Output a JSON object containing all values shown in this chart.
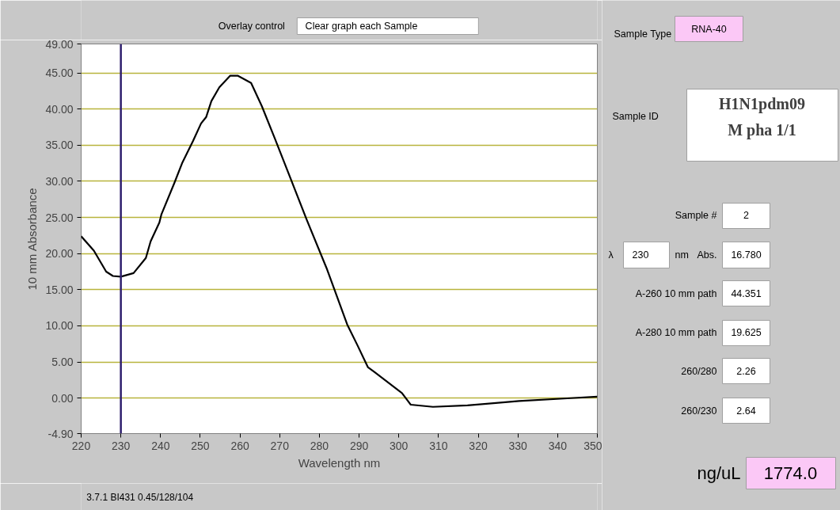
{
  "chart_data": {
    "type": "line",
    "xlabel": "Wavelength nm",
    "ylabel": "10 mm Absorbance",
    "xlim": [
      220,
      350
    ],
    "ylim": [
      -4.9,
      49
    ],
    "xticks": [
      220,
      230,
      240,
      250,
      260,
      270,
      280,
      290,
      300,
      310,
      320,
      330,
      340,
      350
    ],
    "yticks": [
      {
        "value": -4.9,
        "label": "-4.90"
      },
      {
        "value": 0,
        "label": "0.00"
      },
      {
        "value": 5,
        "label": "5.00"
      },
      {
        "value": 10,
        "label": "10.00"
      },
      {
        "value": 15,
        "label": "15.00"
      },
      {
        "value": 20,
        "label": "20.00"
      },
      {
        "value": 25,
        "label": "25.00"
      },
      {
        "value": 30,
        "label": "30.00"
      },
      {
        "value": 35,
        "label": "35.00"
      },
      {
        "value": 40,
        "label": "40.00"
      },
      {
        "value": 45,
        "label": "45.00"
      },
      {
        "value": 49,
        "label": "49.00"
      }
    ],
    "grid": "y",
    "series": [
      {
        "color": "#000000",
        "x": [
          220,
          223.2,
          226.3,
          228,
          230,
          233.2,
          236.3,
          237.5,
          239.7,
          240.2,
          243.5,
          245.5,
          248.2,
          250.2,
          251.5,
          252.8,
          254.8,
          257.5,
          259.5,
          262.8,
          265.5,
          268.8,
          272.8,
          276.8,
          281.8,
          287,
          289.6,
          292.2,
          293.9,
          300.8,
          303,
          308.6,
          317.3,
          330.3,
          343.3,
          350
        ],
        "values": [
          22.4,
          20.4,
          17.5,
          16.9,
          16.8,
          17.3,
          19.4,
          21.7,
          24.3,
          25.4,
          29.8,
          32.6,
          35.6,
          38,
          38.9,
          41.1,
          43,
          44.6,
          44.6,
          43.6,
          40.4,
          35.9,
          30.3,
          24.7,
          18,
          10.2,
          7.3,
          4.3,
          3.6,
          0.7,
          -0.9,
          -1.2,
          -1,
          -0.4,
          0,
          0.2
        ]
      }
    ],
    "ref_lines": [
      {
        "axis": "x",
        "value": 230,
        "color": "#2e1f6e"
      }
    ],
    "annotations": [
      "Overlay control",
      "Clear graph each Sample",
      "Sample Type",
      "RNA-40",
      "Sample ID",
      "H1N1pdm09",
      "M pha 1/1",
      "Sample #",
      "2",
      "λ",
      "230",
      "nm",
      "Abs.",
      "16.780",
      "A-260 10 mm path",
      "44.351",
      "A-280 10 mm path",
      "19.625",
      "260/280",
      "2.26",
      "260/230",
      "2.64",
      "ng/uL",
      "1774.0",
      "3.7.1 BI431 0.45/128/104"
    ]
  }
}
